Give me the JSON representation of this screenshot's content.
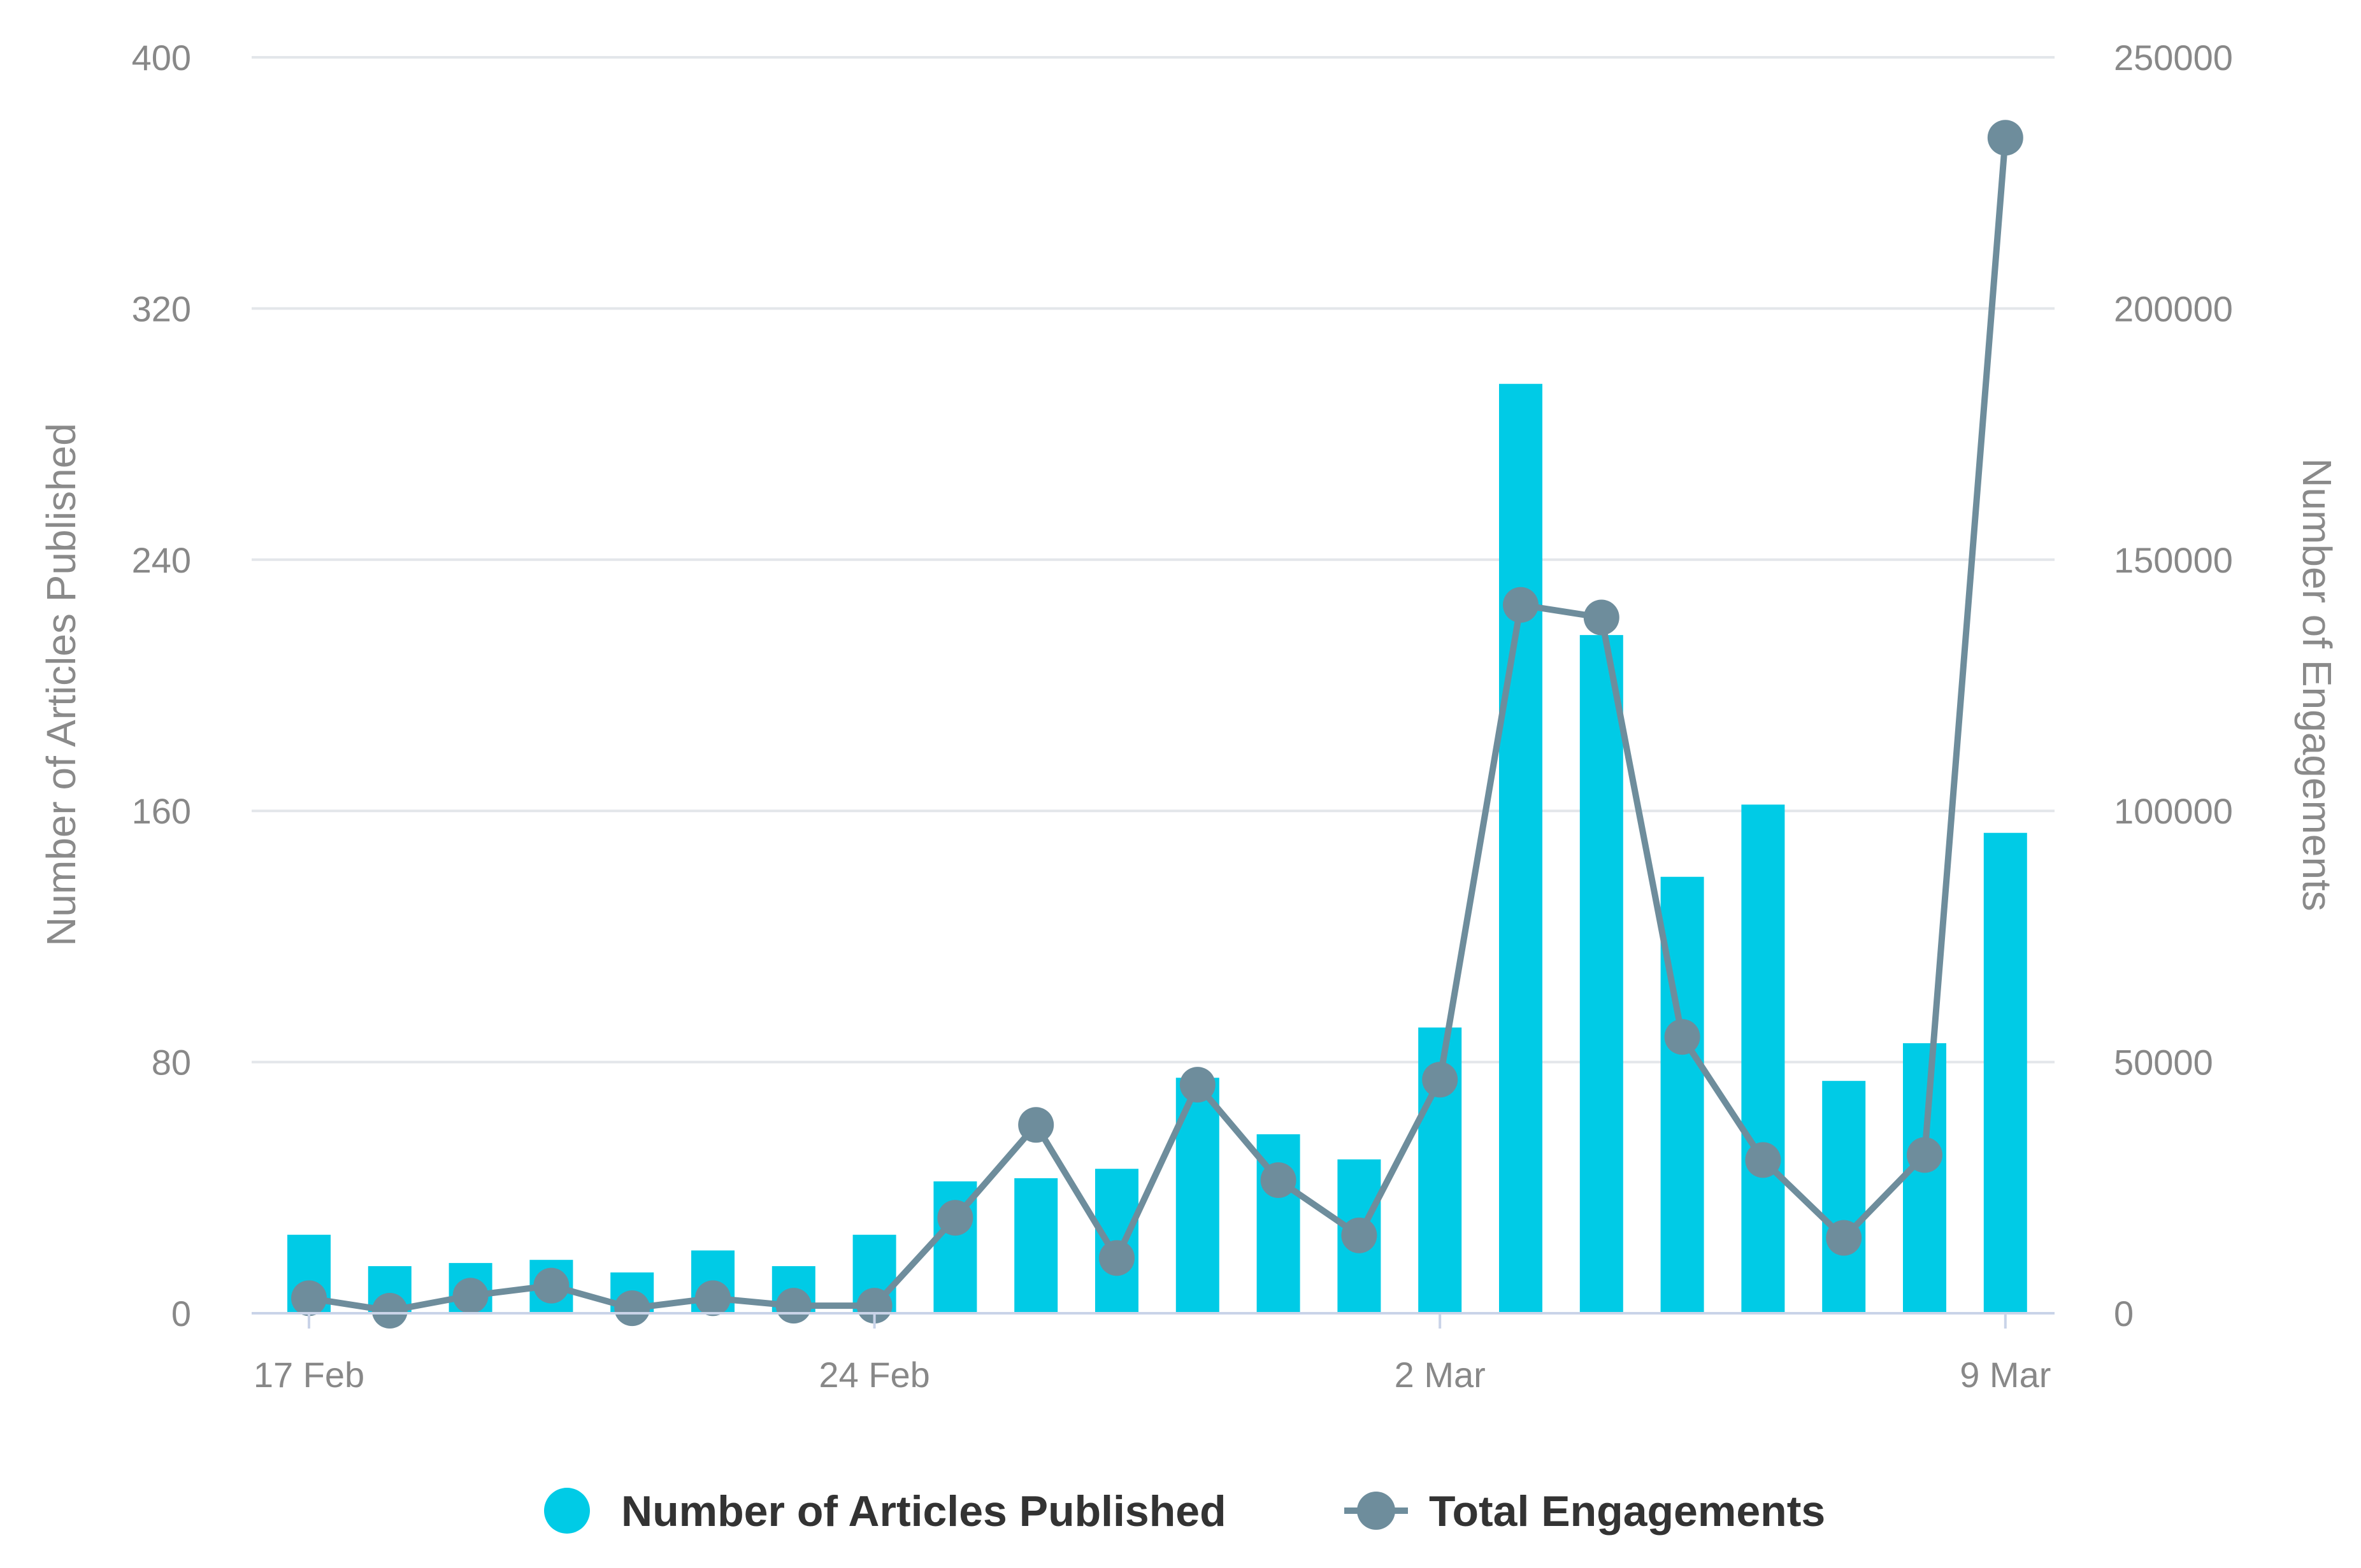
{
  "chart_data": {
    "type": "bar",
    "x_tick_labels": [
      "17 Feb",
      "24 Feb",
      "2 Mar",
      "9 Mar"
    ],
    "y_left": {
      "label": "Number of Articles Published",
      "ticks": [
        "0",
        "80",
        "160",
        "240",
        "320",
        "400"
      ],
      "range": [
        0,
        400
      ]
    },
    "y_right": {
      "label": "Number of Engagements",
      "ticks": [
        "0",
        "50000",
        "100000",
        "150000",
        "200000",
        "250000"
      ],
      "range": [
        0,
        250000
      ]
    },
    "x": [
      "2024-02-17",
      "2024-02-18",
      "2024-02-19",
      "2024-02-20",
      "2024-02-21",
      "2024-02-22",
      "2024-02-23",
      "2024-02-24",
      "2024-02-25",
      "2024-02-26",
      "2024-02-27",
      "2024-02-28",
      "2024-02-29",
      "2024-03-01",
      "2024-03-02",
      "2024-03-03",
      "2024-03-04",
      "2024-03-05",
      "2024-03-06",
      "2024-03-07",
      "2024-03-08",
      "2024-03-09"
    ],
    "series": [
      {
        "name": "Number of Articles Published",
        "type": "bar",
        "axis": "left",
        "color": "#00cbe6",
        "values": [
          25,
          15,
          16,
          17,
          13,
          20,
          15,
          25,
          42,
          43,
          46,
          75,
          57,
          49,
          91,
          296,
          216,
          139,
          162,
          74,
          86,
          153
        ]
      },
      {
        "name": "Total Engagements",
        "type": "line",
        "axis": "right",
        "color": "#6e8d9c",
        "values": [
          3000,
          500,
          3500,
          5500,
          1000,
          3000,
          1500,
          1500,
          19000,
          37500,
          11000,
          45500,
          26500,
          15500,
          46500,
          141000,
          138500,
          55000,
          30500,
          15000,
          31500,
          234000
        ]
      }
    ],
    "grid": true,
    "legend": "bottom-center"
  }
}
